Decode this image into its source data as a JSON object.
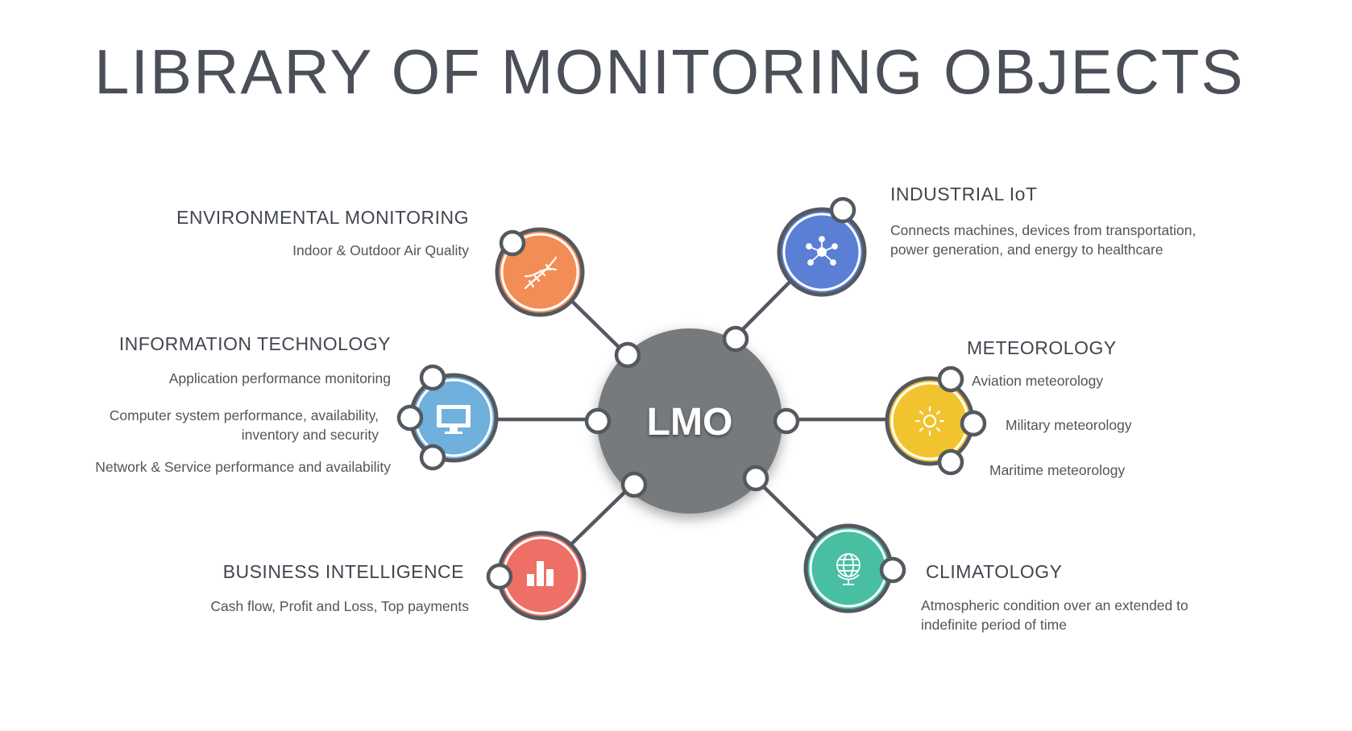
{
  "title": "LIBRARY OF MONITORING OBJECTS",
  "center": {
    "label": "LMO",
    "color": "#767a7d"
  },
  "nodes": {
    "environmental": {
      "heading": "ENVIRONMENTAL MONITORING",
      "lines": [
        "Indoor & Outdoor Air Quality"
      ],
      "color": "#f28d55",
      "icon": "dna-icon"
    },
    "it": {
      "heading": "INFORMATION  TECHNOLOGY",
      "lines": [
        "Application performance monitoring",
        "Computer system performance, availability,",
        "inventory and security",
        "Network & Service performance and availability"
      ],
      "color": "#6fb0dc",
      "icon": "monitor-icon"
    },
    "bi": {
      "heading": "BUSINESS INTELLIGENCE",
      "lines": [
        "Cash flow, Profit and Loss, Top payments"
      ],
      "color": "#ee6f65",
      "icon": "bar-chart-icon"
    },
    "iiot": {
      "heading": "INDUSTRIAL IoT",
      "lines": [
        "Connects machines, devices from transportation,",
        "power generation, and energy to healthcare"
      ],
      "color": "#5a7fd5",
      "icon": "network-icon"
    },
    "meteorology": {
      "heading": "METEOROLOGY",
      "lines": [
        "Aviation meteorology",
        "Military meteorology",
        "Maritime meteorology"
      ],
      "color": "#f1c42f",
      "icon": "sun-icon"
    },
    "climatology": {
      "heading": "CLIMATOLOGY",
      "lines": [
        "Atmospheric condition over an extended to",
        "indefinite period of time"
      ],
      "color": "#48bea3",
      "icon": "globe-icon"
    }
  },
  "stroke_color": "#54585f"
}
